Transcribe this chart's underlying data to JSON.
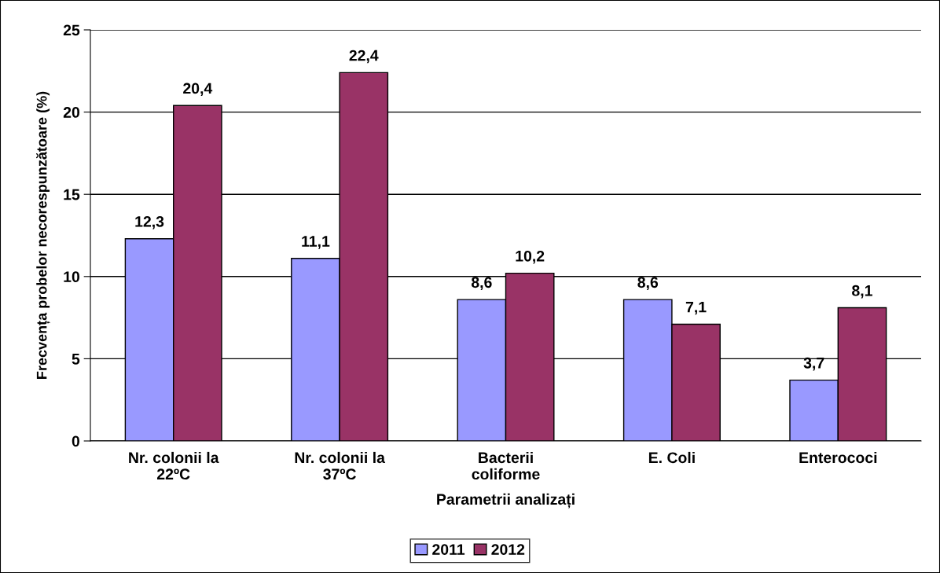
{
  "chart_data": {
    "type": "bar",
    "xlabel": "Parametrii analizați",
    "ylabel": "Frecvența probelor necorespunzătoare (%)",
    "categories": [
      "Nr. colonii la\n22ºC",
      "Nr. colonii la\n37ºC",
      "Bacterii\ncoliforme",
      "E. Coli",
      "Enterococi"
    ],
    "series": [
      {
        "name": "2011",
        "color": "#9999ff",
        "values": [
          12.3,
          11.1,
          8.6,
          8.6,
          3.7
        ],
        "value_labels": [
          "12,3",
          "11,1",
          "8,6",
          "8,6",
          "3,7"
        ]
      },
      {
        "name": "2012",
        "color": "#993366",
        "values": [
          20.4,
          22.4,
          10.2,
          7.1,
          8.1
        ],
        "value_labels": [
          "20,4",
          "22,4",
          "10,2",
          "7,1",
          "8,1"
        ]
      }
    ],
    "ylim": [
      0,
      25
    ],
    "yticks": [
      0,
      5,
      10,
      15,
      20,
      25
    ],
    "grid": "y",
    "legend": "bottom"
  }
}
